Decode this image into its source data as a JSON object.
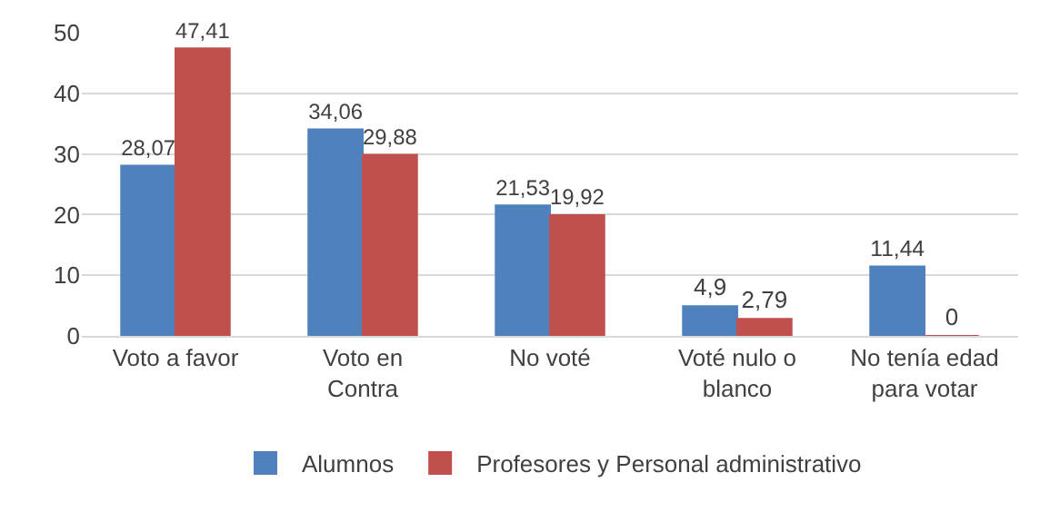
{
  "chart_data": {
    "type": "bar",
    "categories": [
      "Voto a favor",
      "Voto en Contra",
      "No voté",
      "Voté nulo o blanco",
      "No tenía edad para votar"
    ],
    "series": [
      {
        "name": "Alumnos",
        "color": "#4f81bd",
        "values": [
          28.07,
          34.06,
          21.53,
          4.9,
          11.44
        ],
        "value_labels": [
          "28,07",
          "34,06",
          "21,53",
          "4,9",
          "11,44"
        ]
      },
      {
        "name": "Profesores y Personal administrativo",
        "color": "#c0504d",
        "values": [
          47.41,
          29.88,
          19.92,
          2.79,
          0
        ],
        "value_labels": [
          "47,41",
          "29,88",
          "19,92",
          "2,79",
          "0"
        ]
      }
    ],
    "ylim": [
      0,
      50
    ],
    "yticks": [
      0,
      10,
      20,
      30,
      40,
      50
    ],
    "grid": "y",
    "legend": "bottom"
  }
}
